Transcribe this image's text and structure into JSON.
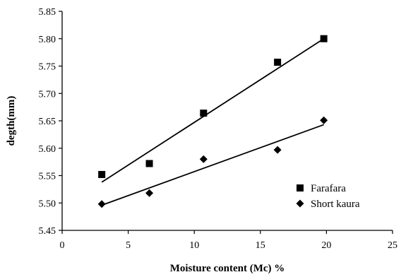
{
  "chart_data": {
    "type": "scatter",
    "title": "",
    "xlabel": "Moisture content (Mc) %",
    "ylabel": "degth(mm)",
    "xlim": [
      0,
      25
    ],
    "ylim": [
      5.45,
      5.85
    ],
    "x_ticks": [
      0,
      5,
      10,
      15,
      20,
      25
    ],
    "y_ticks": [
      5.45,
      5.5,
      5.55,
      5.6,
      5.65,
      5.7,
      5.75,
      5.8,
      5.85
    ],
    "y_tick_labels": [
      "5.45",
      "5.50",
      "5.55",
      "5.60",
      "5.65",
      "5.70",
      "5.75",
      "5.80",
      "5.85"
    ],
    "x_tick_labels": [
      "0",
      "5",
      "10",
      "15",
      "20",
      "25"
    ],
    "grid": false,
    "legend_position": "bottom-right",
    "series": [
      {
        "name": "Farafara",
        "marker": "square",
        "color": "#000000",
        "x": [
          3.0,
          6.6,
          10.7,
          16.3,
          19.8
        ],
        "y": [
          5.552,
          5.572,
          5.664,
          5.757,
          5.8
        ],
        "trendline": {
          "x": [
            3.0,
            19.8
          ],
          "y": [
            5.538,
            5.8
          ]
        }
      },
      {
        "name": "Short kaura",
        "marker": "diamond",
        "color": "#000000",
        "x": [
          3.0,
          6.6,
          10.7,
          16.3,
          19.8
        ],
        "y": [
          5.498,
          5.518,
          5.58,
          5.597,
          5.651
        ],
        "trendline": {
          "x": [
            3.0,
            19.8
          ],
          "y": [
            5.496,
            5.643
          ]
        }
      }
    ]
  }
}
